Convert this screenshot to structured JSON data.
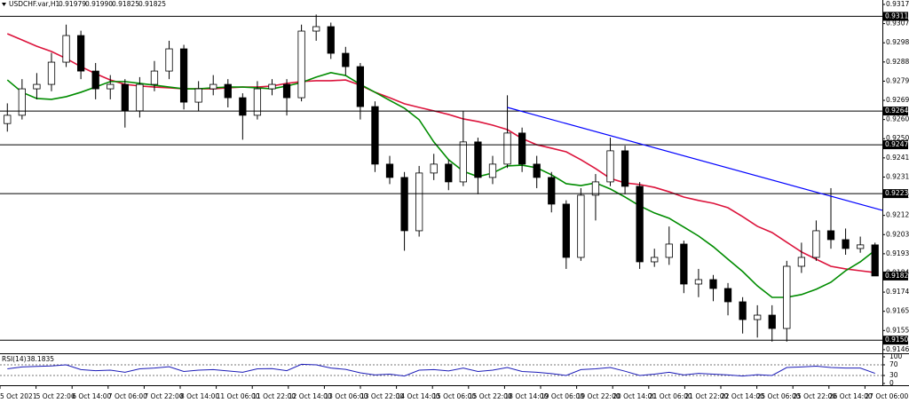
{
  "chart_data": {
    "type": "candlestick",
    "symbol": "USDCHF.var,H1",
    "quote": {
      "values": [
        0.91979,
        0.9199,
        0.91825,
        0.91825
      ],
      "value_labels": [
        "0.91979",
        "0.91990",
        "0.91825",
        "0.91825"
      ]
    },
    "open": [
      0.9258,
      0.92621,
      0.92752,
      0.92774,
      0.92884,
      0.93016,
      0.9284,
      0.92752,
      0.92774,
      0.92643,
      0.92774,
      0.9284,
      0.9295,
      0.92686,
      0.92752,
      0.92774,
      0.92708,
      0.92621,
      0.92752,
      0.92774,
      0.92708,
      0.93038,
      0.9306,
      0.92928,
      0.92862,
      0.92664,
      0.92379,
      0.92313,
      0.92049,
      0.92335,
      0.92379,
      0.92291,
      0.92489,
      0.92313,
      0.92379,
      0.92533,
      0.92379,
      0.92313,
      0.92181,
      0.91917,
      0.92225,
      0.92291,
      0.92445,
      0.92269,
      0.91895,
      0.91917,
      0.91983,
      0.91785,
      0.91807,
      0.91763,
      0.91697,
      0.91609,
      0.91631,
      0.91565,
      0.91873,
      0.91917,
      0.92049,
      0.92005,
      0.91961,
      0.91979
    ],
    "high": [
      0.9268,
      0.928,
      0.9283,
      0.9293,
      0.9307,
      0.9304,
      0.9288,
      0.9282,
      0.928,
      0.9281,
      0.9289,
      0.9299,
      0.9297,
      0.9279,
      0.9282,
      0.928,
      0.9273,
      0.9279,
      0.928,
      0.928,
      0.9307,
      0.9312,
      0.9308,
      0.9296,
      0.9288,
      0.9269,
      0.9242,
      0.9234,
      0.9237,
      0.9243,
      0.924,
      0.9264,
      0.9251,
      0.9242,
      0.9272,
      0.9256,
      0.9242,
      0.9234,
      0.922,
      0.9226,
      0.9233,
      0.9251,
      0.9247,
      0.9229,
      0.9196,
      0.9207,
      0.92,
      0.9186,
      0.9183,
      0.9179,
      0.9172,
      0.9168,
      0.9168,
      0.919,
      0.9199,
      0.921,
      0.9226,
      0.9206,
      0.9202,
      0.9199
    ],
    "low": [
      0.9254,
      0.926,
      0.927,
      0.9274,
      0.9286,
      0.928,
      0.927,
      0.927,
      0.9256,
      0.9261,
      0.9274,
      0.928,
      0.9265,
      0.9264,
      0.9272,
      0.9266,
      0.925,
      0.926,
      0.9272,
      0.9262,
      0.9269,
      0.9299,
      0.929,
      0.9282,
      0.926,
      0.9234,
      0.9228,
      0.9195,
      0.9202,
      0.923,
      0.9225,
      0.9227,
      0.9223,
      0.9228,
      0.9236,
      0.9234,
      0.9226,
      0.9214,
      0.9186,
      0.919,
      0.921,
      0.9227,
      0.9223,
      0.9186,
      0.9187,
      0.9188,
      0.9174,
      0.9172,
      0.917,
      0.9163,
      0.9154,
      0.9152,
      0.915,
      0.915,
      0.9184,
      0.919,
      0.9196,
      0.9193,
      0.9194,
      0.91825
    ],
    "close": [
      0.92621,
      0.92752,
      0.92774,
      0.92884,
      0.93016,
      0.9284,
      0.92752,
      0.92774,
      0.92643,
      0.92774,
      0.9284,
      0.9295,
      0.92686,
      0.92752,
      0.92774,
      0.92708,
      0.92621,
      0.92752,
      0.92774,
      0.92708,
      0.93038,
      0.9306,
      0.92928,
      0.92862,
      0.92664,
      0.92379,
      0.92313,
      0.92049,
      0.92335,
      0.92379,
      0.92291,
      0.92489,
      0.92313,
      0.92379,
      0.92533,
      0.92379,
      0.92313,
      0.92181,
      0.91917,
      0.92225,
      0.92291,
      0.92445,
      0.92269,
      0.91895,
      0.91917,
      0.91983,
      0.91785,
      0.91807,
      0.91763,
      0.91697,
      0.91609,
      0.91631,
      0.91565,
      0.91873,
      0.91917,
      0.92049,
      0.92005,
      0.91961,
      0.91979,
      0.91825
    ],
    "up_color": "#ffffff",
    "down_color": "#000000",
    "wick_color": "#000000",
    "lines": [
      {
        "color": "#dc143c",
        "values": [
          0.93025,
          0.92994,
          0.92963,
          0.92937,
          0.92902,
          0.92862,
          0.92827,
          0.92796,
          0.92774,
          0.92766,
          0.92761,
          0.92757,
          0.92752,
          0.92752,
          0.92752,
          0.92757,
          0.92761,
          0.92761,
          0.92766,
          0.92779,
          0.92788,
          0.92792,
          0.92792,
          0.92796,
          0.9277,
          0.92735,
          0.92708,
          0.92678,
          0.9266,
          0.92643,
          0.92625,
          0.92603,
          0.9259,
          0.92572,
          0.9255,
          0.92506,
          0.92475,
          0.92458,
          0.9244,
          0.92401,
          0.92357,
          0.92308,
          0.92286,
          0.92278,
          0.92264,
          0.92242,
          0.92216,
          0.92199,
          0.92185,
          0.92163,
          0.92119,
          0.92071,
          0.9204,
          0.91992,
          0.91944,
          0.91908,
          0.91873,
          0.9186,
          0.91851,
          0.91842
        ]
      },
      {
        "color": "#008c00",
        "values": [
          0.92796,
          0.92735,
          0.92704,
          0.927,
          0.92713,
          0.92735,
          0.92761,
          0.92788,
          0.92788,
          0.92779,
          0.9277,
          0.92761,
          0.92752,
          0.92752,
          0.92757,
          0.92761,
          0.92761,
          0.92757,
          0.92752,
          0.92766,
          0.92783,
          0.9281,
          0.92832,
          0.92818,
          0.92774,
          0.92735,
          0.92695,
          0.92656,
          0.92599,
          0.92489,
          0.92401,
          0.92344,
          0.92317,
          0.92335,
          0.9237,
          0.92374,
          0.92361,
          0.92326,
          0.92282,
          0.92273,
          0.92286,
          0.92256,
          0.92216,
          0.92172,
          0.92137,
          0.92111,
          0.92067,
          0.92023,
          0.9197,
          0.91908,
          0.91847,
          0.91776,
          0.91719,
          0.91719,
          0.91733,
          0.91759,
          0.91794,
          0.91851,
          0.91895,
          0.91952
        ]
      }
    ],
    "levels": [
      0.93111,
      0.92642,
      0.92475,
      0.92233,
      0.91507
    ],
    "trendline": {
      "x": [
        34,
        56
      ],
      "y": [
        0.9266,
        0.9222
      ],
      "color": "#0000ff"
    },
    "ylim": [
      0.91442,
      0.93192
    ],
    "yticks": [
      {
        "value": 0.9317,
        "label": "0.93170"
      },
      0.93075,
      {
        "value": 0.9298,
        "label": "0.92980"
      },
      0.92885,
      {
        "value": 0.9279,
        "label": "0.92790"
      },
      0.92695,
      {
        "value": 0.926,
        "label": "0.92600"
      },
      0.92505,
      {
        "value": 0.9241,
        "label": "0.92410"
      },
      0.92315,
      {
        "value": 0.9222,
        "label": "0.92220"
      },
      0.92125,
      {
        "value": 0.9203,
        "label": "0.92030"
      },
      0.91935,
      {
        "value": 0.9184,
        "label": "0.91840"
      },
      0.91745,
      {
        "value": 0.9165,
        "label": "0.91650"
      },
      0.91555,
      {
        "value": 0.9146,
        "label": "0.91460"
      }
    ],
    "grid": false,
    "rsi": {
      "label": "RSI(14)",
      "color": "#1c1cb8",
      "ylim": [
        0,
        100
      ],
      "yticks": [
        100,
        70,
        30,
        0
      ],
      "values": [
        55,
        62,
        64,
        66,
        70,
        52,
        48,
        50,
        42,
        55,
        58,
        63,
        45,
        50,
        52,
        47,
        42,
        55,
        56,
        48,
        72,
        70,
        58,
        53,
        40,
        32,
        35,
        28,
        50,
        52,
        47,
        58,
        45,
        50,
        60,
        45,
        42,
        37,
        30,
        52,
        55,
        60,
        46,
        30,
        35,
        42,
        32,
        38,
        35,
        32,
        28,
        33,
        30,
        60,
        62,
        65,
        60,
        58,
        58,
        38.1835
      ]
    },
    "time_labels": [
      "5 Oct 2021",
      "5 Oct 22:00",
      "6 Oct 14:00",
      "7 Oct 06:00",
      "7 Oct 22:00",
      "8 Oct 14:00",
      "11 Oct 06:00",
      "11 Oct 22:00",
      "12 Oct 14:00",
      "13 Oct 06:00",
      "13 Oct 22:00",
      "14 Oct 14:00",
      "15 Oct 06:00",
      "15 Oct 22:00",
      "18 Oct 14:00",
      "19 Oct 06:00",
      "19 Oct 22:00",
      "20 Oct 14:00",
      "21 Oct 06:00",
      "21 Oct 22:00",
      "22 Oct 14:00",
      "25 Oct 06:00",
      "25 Oct 22:00",
      "26 Oct 14:00",
      "27 Oct 06:00"
    ]
  }
}
